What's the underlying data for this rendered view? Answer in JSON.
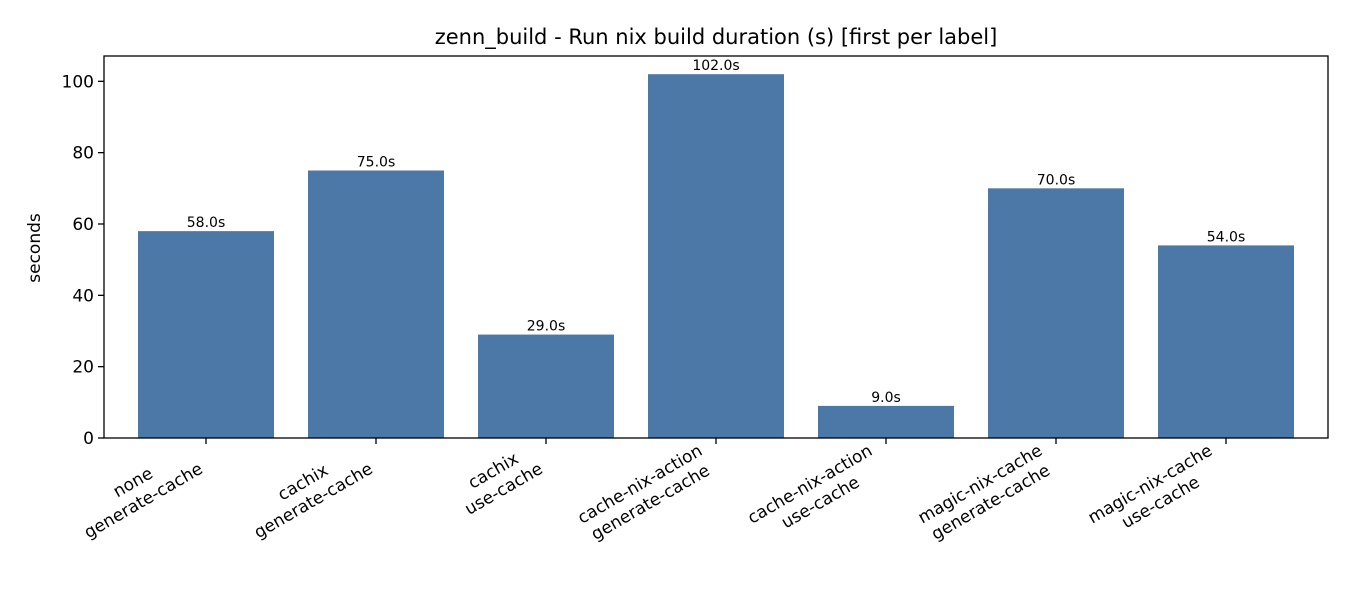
{
  "chart_data": {
    "type": "bar",
    "title": "zenn_build - Run nix build duration (s) [first per label]",
    "xlabel": "",
    "ylabel": "seconds",
    "categories": [
      [
        "none",
        "generate-cache"
      ],
      [
        "cachix",
        "generate-cache"
      ],
      [
        "cachix",
        "use-cache"
      ],
      [
        "cache-nix-action",
        "generate-cache"
      ],
      [
        "cache-nix-action",
        "use-cache"
      ],
      [
        "magic-nix-cache",
        "generate-cache"
      ],
      [
        "magic-nix-cache",
        "use-cache"
      ]
    ],
    "values": [
      58.0,
      75.0,
      29.0,
      102.0,
      9.0,
      70.0,
      54.0
    ],
    "data_labels": [
      "58.0s",
      "75.0s",
      "29.0s",
      "102.0s",
      "9.0s",
      "70.0s",
      "54.0s"
    ],
    "ylim": [
      0,
      107.1
    ],
    "yticks": [
      0,
      20,
      40,
      60,
      80,
      100
    ],
    "grid": false,
    "bar_color": "#4c78a8"
  }
}
